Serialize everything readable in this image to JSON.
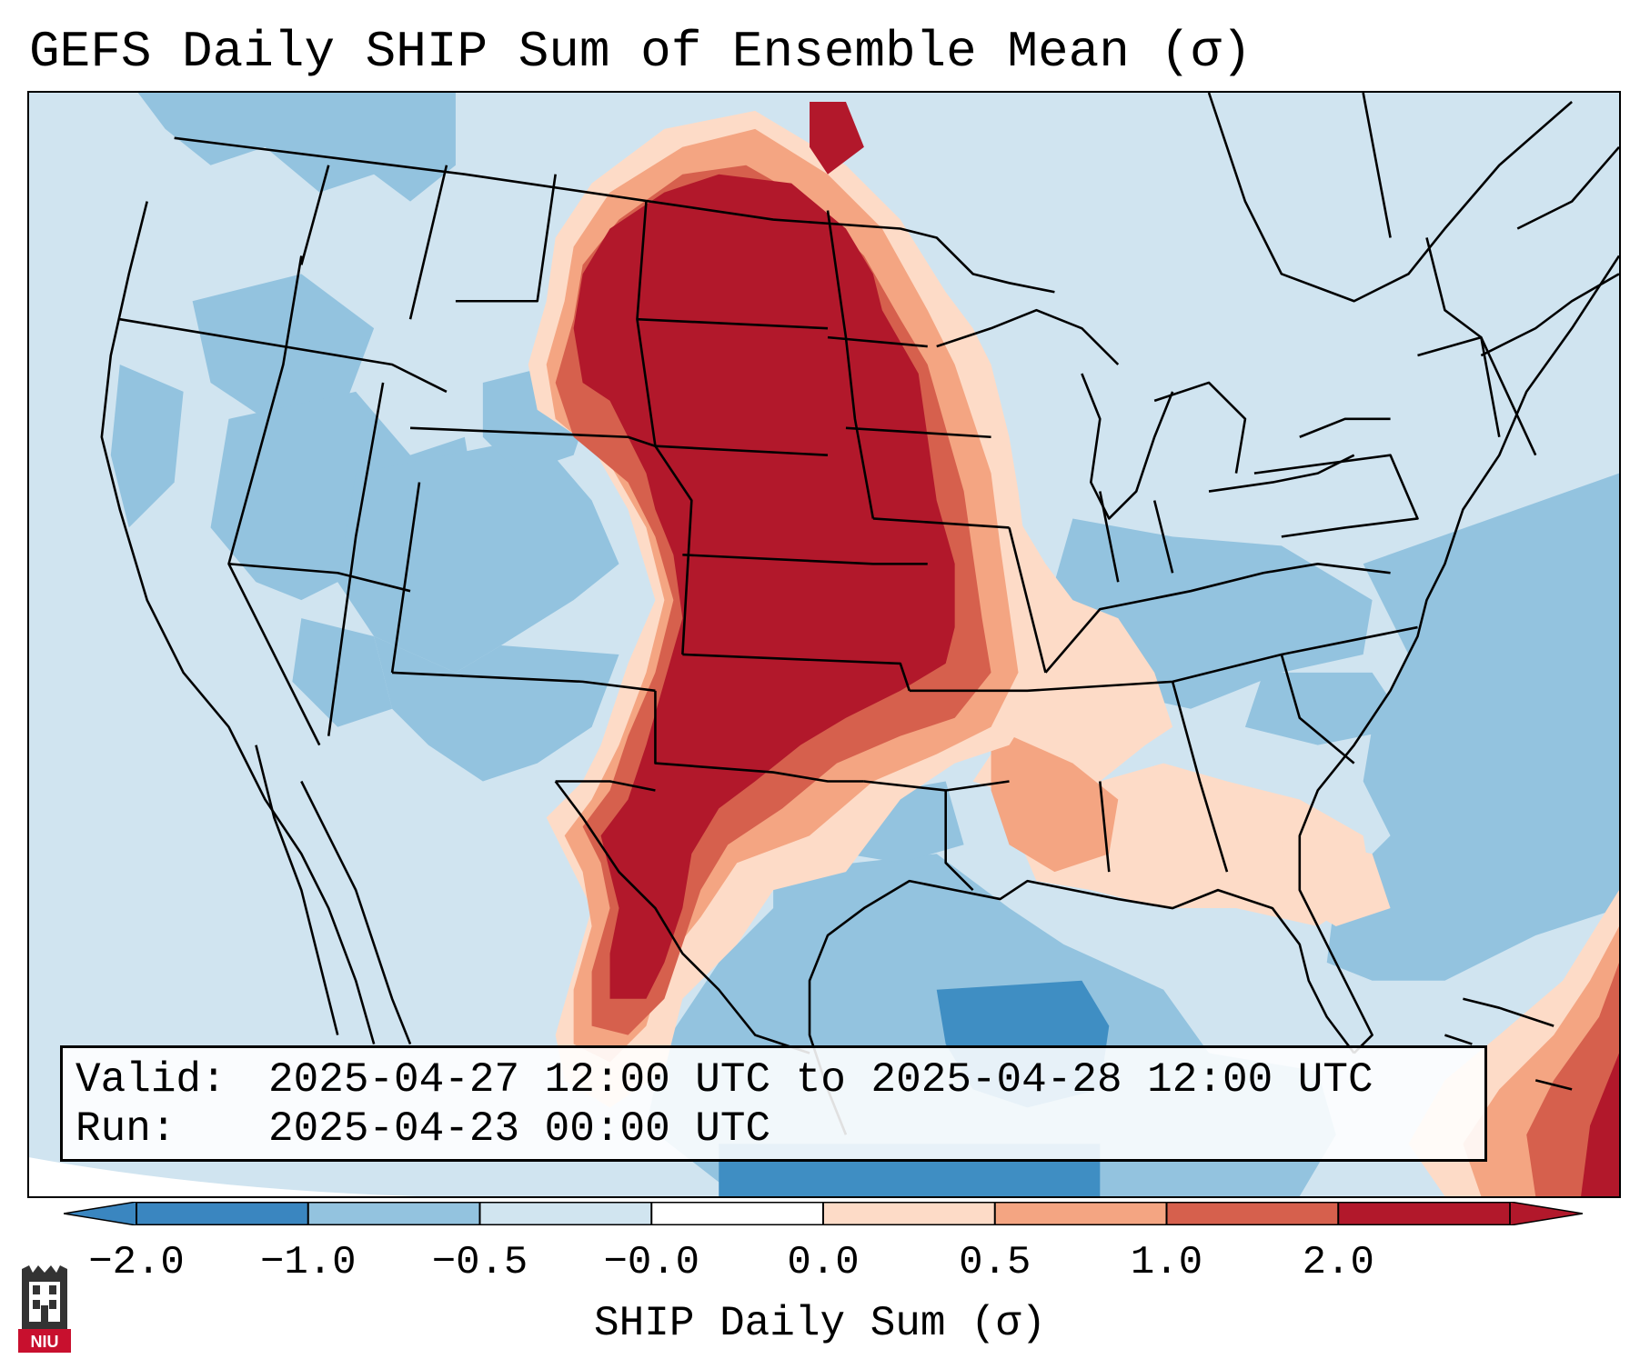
{
  "title": "GEFS Daily SHIP Sum of Ensemble Mean (σ)",
  "info": {
    "valid_key": "Valid:",
    "valid_value": "2025-04-27 12:00 UTC to 2025-04-28 12:00 UTC",
    "run_key": "Run:",
    "run_value": "2025-04-23 00:00 UTC"
  },
  "colorbar": {
    "label": "SHIP Daily Sum (σ)",
    "ticks": [
      "−2.0",
      "−1.0",
      "−0.5",
      "−0.0",
      "0.0",
      "0.5",
      "1.0",
      "2.0"
    ],
    "colors": [
      "#3a86c0",
      "#93c3df",
      "#d1e5f0",
      "#ffffff",
      "#fddbc7",
      "#f4a582",
      "#d6604d",
      "#b2182b"
    ],
    "extend": "both"
  },
  "logo": {
    "text": "NIU",
    "name": "niu-logo"
  },
  "map": {
    "region": "contiguous-united-states",
    "colors": {
      "ocean_background": "#d0e4f0",
      "blue_light": "#93c3df",
      "blue_mid": "#3f8ec3",
      "red_dark": "#b2182b",
      "red_mid": "#d6604d",
      "red_light": "#f4a582",
      "pink": "#fddbc7",
      "land_edge_white": "#ffffff"
    }
  }
}
